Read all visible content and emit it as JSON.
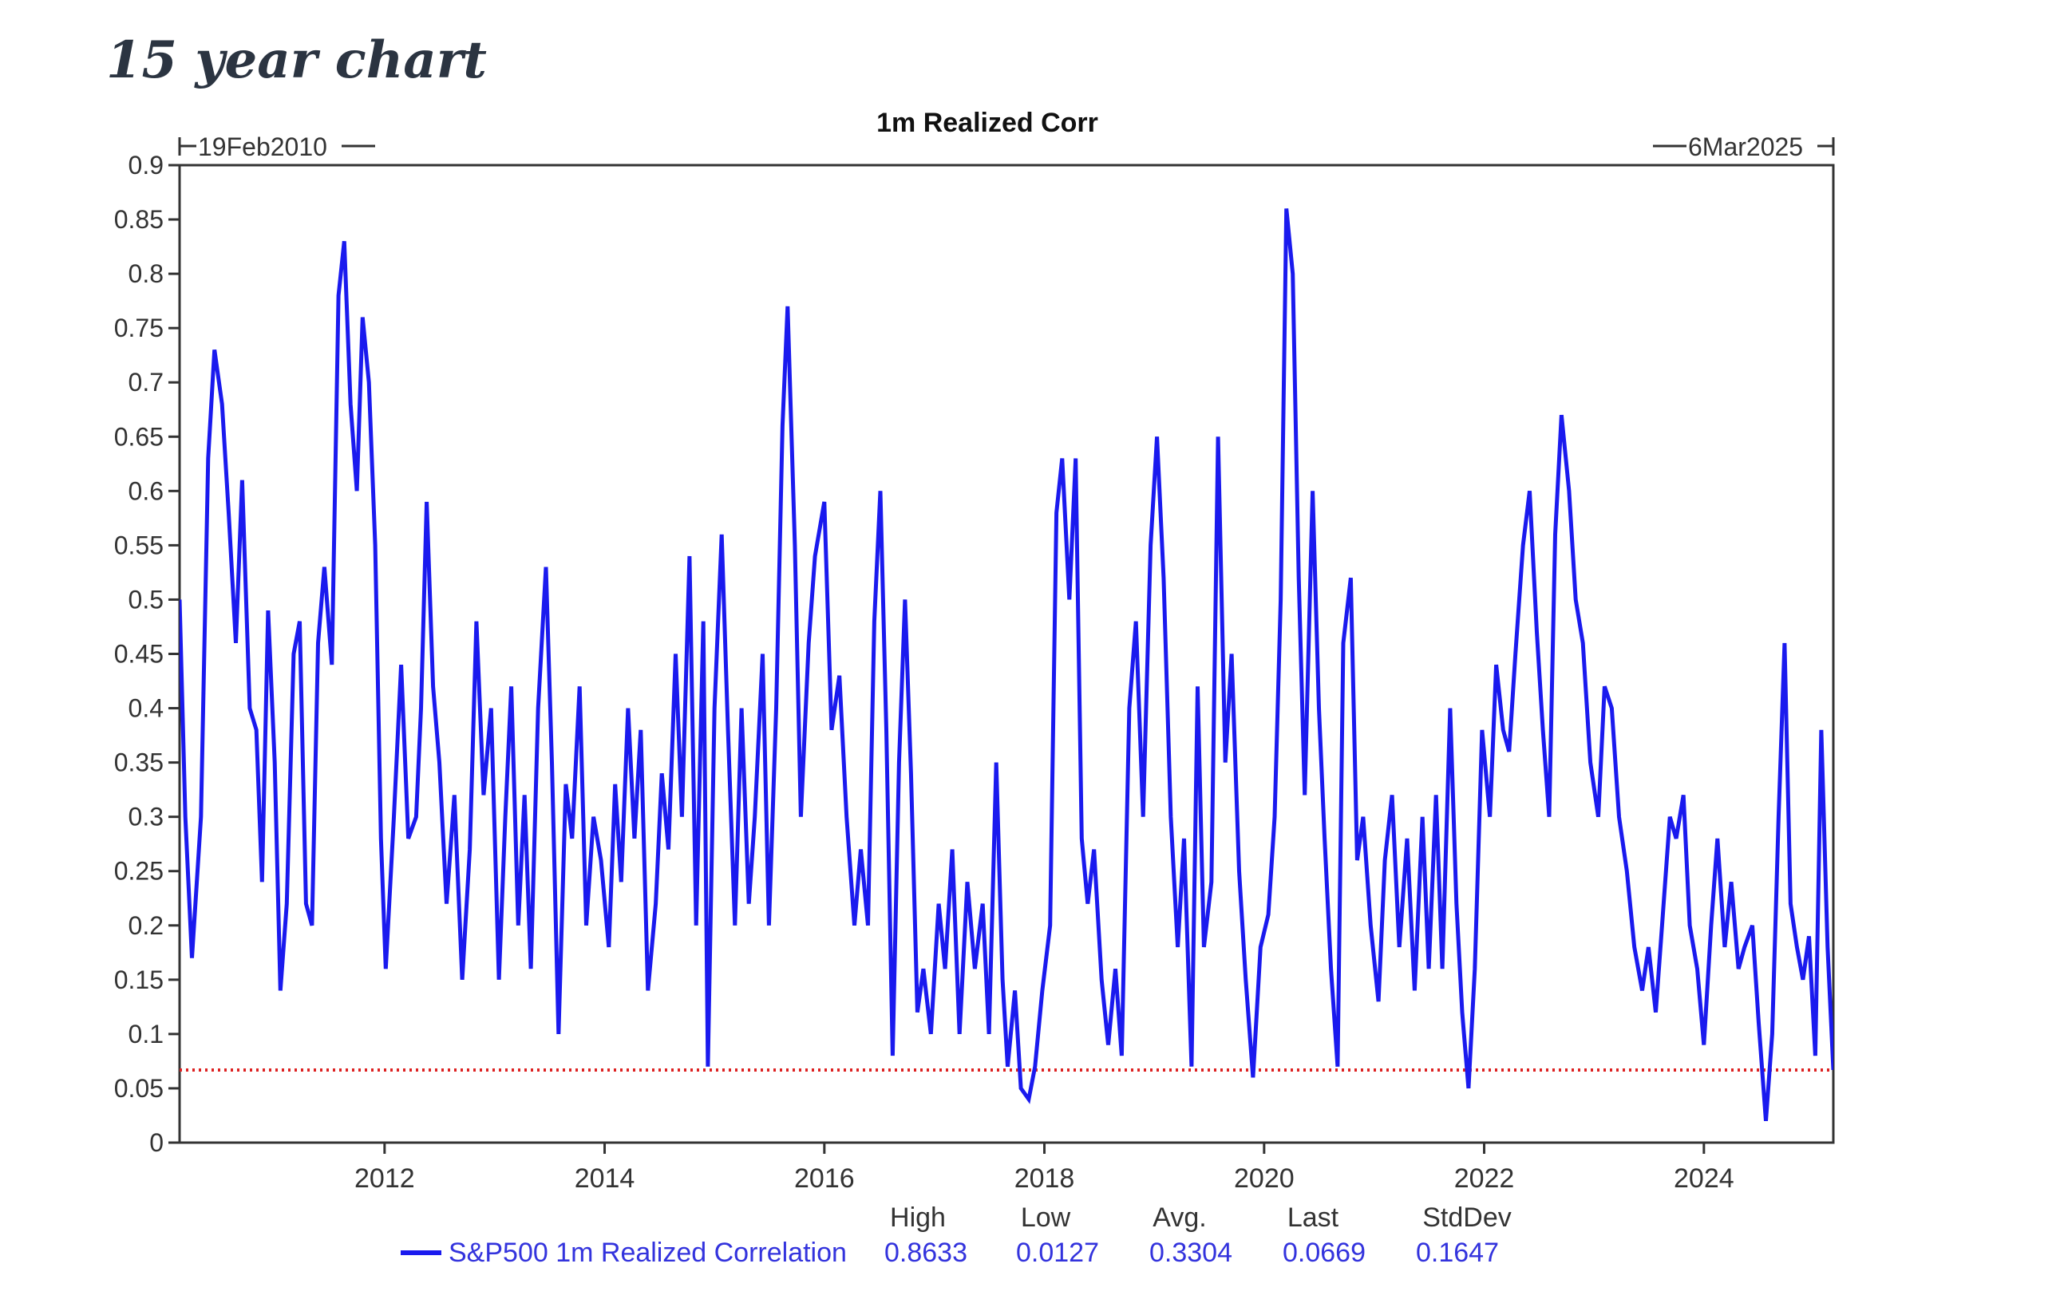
{
  "page": {
    "heading": "15 year chart"
  },
  "chart_data": {
    "type": "line",
    "title": "1m Realized Corr",
    "start_label": "19Feb2010",
    "end_label": "6Mar2025",
    "x_range": [
      "2010-02-19",
      "2025-03-06"
    ],
    "ylim": [
      0,
      0.9
    ],
    "y_ticks": [
      "0",
      "0.05",
      "0.1",
      "0.15",
      "0.2",
      "0.25",
      "0.3",
      "0.35",
      "0.4",
      "0.45",
      "0.5",
      "0.55",
      "0.6",
      "0.65",
      "0.7",
      "0.75",
      "0.8",
      "0.85",
      "0.9"
    ],
    "x_ticks": [
      "2012",
      "2014",
      "2016",
      "2018",
      "2020",
      "2022",
      "2024"
    ],
    "grid": false,
    "reference_line": {
      "value": 0.0669,
      "style": "dotted",
      "color": "#dd2222"
    },
    "series": [
      {
        "name": "S&P500 1m Realized Correlation",
        "color": "#1a1aee",
        "points": [
          [
            "2010-02-19",
            0.5
          ],
          [
            "2010-03-10",
            0.3
          ],
          [
            "2010-04-01",
            0.17
          ],
          [
            "2010-05-01",
            0.3
          ],
          [
            "2010-05-25",
            0.63
          ],
          [
            "2010-06-15",
            0.73
          ],
          [
            "2010-07-10",
            0.68
          ],
          [
            "2010-08-01",
            0.58
          ],
          [
            "2010-08-25",
            0.46
          ],
          [
            "2010-09-15",
            0.61
          ],
          [
            "2010-10-10",
            0.4
          ],
          [
            "2010-11-01",
            0.38
          ],
          [
            "2010-11-20",
            0.24
          ],
          [
            "2010-12-10",
            0.49
          ],
          [
            "2011-01-01",
            0.35
          ],
          [
            "2011-01-20",
            0.14
          ],
          [
            "2011-02-10",
            0.22
          ],
          [
            "2011-03-05",
            0.45
          ],
          [
            "2011-03-25",
            0.48
          ],
          [
            "2011-04-15",
            0.22
          ],
          [
            "2011-05-05",
            0.2
          ],
          [
            "2011-05-25",
            0.46
          ],
          [
            "2011-06-15",
            0.53
          ],
          [
            "2011-07-10",
            0.44
          ],
          [
            "2011-08-01",
            0.78
          ],
          [
            "2011-08-20",
            0.83
          ],
          [
            "2011-09-10",
            0.68
          ],
          [
            "2011-10-01",
            0.6
          ],
          [
            "2011-10-20",
            0.76
          ],
          [
            "2011-11-10",
            0.7
          ],
          [
            "2011-12-01",
            0.55
          ],
          [
            "2011-12-20",
            0.28
          ],
          [
            "2012-01-05",
            0.16
          ],
          [
            "2012-02-01",
            0.3
          ],
          [
            "2012-02-25",
            0.44
          ],
          [
            "2012-03-20",
            0.28
          ],
          [
            "2012-04-15",
            0.3
          ],
          [
            "2012-05-01",
            0.4
          ],
          [
            "2012-05-20",
            0.59
          ],
          [
            "2012-06-10",
            0.42
          ],
          [
            "2012-07-01",
            0.35
          ],
          [
            "2012-07-25",
            0.22
          ],
          [
            "2012-08-20",
            0.32
          ],
          [
            "2012-09-15",
            0.15
          ],
          [
            "2012-10-10",
            0.27
          ],
          [
            "2012-11-01",
            0.48
          ],
          [
            "2012-11-25",
            0.32
          ],
          [
            "2012-12-20",
            0.4
          ],
          [
            "2013-01-15",
            0.15
          ],
          [
            "2013-02-05",
            0.3
          ],
          [
            "2013-02-25",
            0.42
          ],
          [
            "2013-03-20",
            0.2
          ],
          [
            "2013-04-10",
            0.32
          ],
          [
            "2013-05-01",
            0.16
          ],
          [
            "2013-05-25",
            0.4
          ],
          [
            "2013-06-20",
            0.53
          ],
          [
            "2013-07-10",
            0.35
          ],
          [
            "2013-08-01",
            0.1
          ],
          [
            "2013-08-25",
            0.33
          ],
          [
            "2013-09-15",
            0.28
          ],
          [
            "2013-10-10",
            0.42
          ],
          [
            "2013-11-01",
            0.2
          ],
          [
            "2013-11-25",
            0.3
          ],
          [
            "2013-12-20",
            0.26
          ],
          [
            "2014-01-15",
            0.18
          ],
          [
            "2014-02-05",
            0.33
          ],
          [
            "2014-02-25",
            0.24
          ],
          [
            "2014-03-20",
            0.4
          ],
          [
            "2014-04-10",
            0.28
          ],
          [
            "2014-05-01",
            0.38
          ],
          [
            "2014-05-25",
            0.14
          ],
          [
            "2014-06-20",
            0.22
          ],
          [
            "2014-07-10",
            0.34
          ],
          [
            "2014-08-01",
            0.27
          ],
          [
            "2014-08-25",
            0.45
          ],
          [
            "2014-09-15",
            0.3
          ],
          [
            "2014-10-10",
            0.54
          ],
          [
            "2014-11-01",
            0.2
          ],
          [
            "2014-11-25",
            0.48
          ],
          [
            "2014-12-10",
            0.07
          ],
          [
            "2015-01-01",
            0.4
          ],
          [
            "2015-01-25",
            0.56
          ],
          [
            "2015-02-15",
            0.38
          ],
          [
            "2015-03-10",
            0.2
          ],
          [
            "2015-04-01",
            0.4
          ],
          [
            "2015-04-25",
            0.22
          ],
          [
            "2015-05-15",
            0.3
          ],
          [
            "2015-06-10",
            0.45
          ],
          [
            "2015-07-01",
            0.2
          ],
          [
            "2015-07-25",
            0.4
          ],
          [
            "2015-08-15",
            0.66
          ],
          [
            "2015-09-01",
            0.77
          ],
          [
            "2015-09-25",
            0.55
          ],
          [
            "2015-10-15",
            0.3
          ],
          [
            "2015-11-10",
            0.46
          ],
          [
            "2015-12-01",
            0.54
          ],
          [
            "2016-01-01",
            0.59
          ],
          [
            "2016-01-25",
            0.38
          ],
          [
            "2016-02-20",
            0.43
          ],
          [
            "2016-03-15",
            0.3
          ],
          [
            "2016-04-10",
            0.2
          ],
          [
            "2016-05-01",
            0.27
          ],
          [
            "2016-05-25",
            0.2
          ],
          [
            "2016-06-15",
            0.48
          ],
          [
            "2016-07-05",
            0.6
          ],
          [
            "2016-07-25",
            0.38
          ],
          [
            "2016-08-15",
            0.08
          ],
          [
            "2016-09-05",
            0.35
          ],
          [
            "2016-09-25",
            0.5
          ],
          [
            "2016-10-15",
            0.34
          ],
          [
            "2016-11-05",
            0.12
          ],
          [
            "2016-11-25",
            0.16
          ],
          [
            "2016-12-20",
            0.1
          ],
          [
            "2017-01-15",
            0.22
          ],
          [
            "2017-02-05",
            0.16
          ],
          [
            "2017-03-01",
            0.27
          ],
          [
            "2017-03-25",
            0.1
          ],
          [
            "2017-04-20",
            0.24
          ],
          [
            "2017-05-15",
            0.16
          ],
          [
            "2017-06-10",
            0.22
          ],
          [
            "2017-07-01",
            0.1
          ],
          [
            "2017-07-25",
            0.35
          ],
          [
            "2017-08-15",
            0.15
          ],
          [
            "2017-09-01",
            0.07
          ],
          [
            "2017-09-25",
            0.14
          ],
          [
            "2017-10-15",
            0.05
          ],
          [
            "2017-11-10",
            0.04
          ],
          [
            "2017-12-01",
            0.07
          ],
          [
            "2017-12-25",
            0.14
          ],
          [
            "2018-01-20",
            0.2
          ],
          [
            "2018-02-10",
            0.58
          ],
          [
            "2018-03-01",
            0.63
          ],
          [
            "2018-03-25",
            0.5
          ],
          [
            "2018-04-15",
            0.63
          ],
          [
            "2018-05-05",
            0.28
          ],
          [
            "2018-05-25",
            0.22
          ],
          [
            "2018-06-15",
            0.27
          ],
          [
            "2018-07-10",
            0.15
          ],
          [
            "2018-08-01",
            0.09
          ],
          [
            "2018-08-25",
            0.16
          ],
          [
            "2018-09-15",
            0.08
          ],
          [
            "2018-10-10",
            0.4
          ],
          [
            "2018-11-01",
            0.48
          ],
          [
            "2018-11-25",
            0.3
          ],
          [
            "2018-12-20",
            0.55
          ],
          [
            "2019-01-10",
            0.65
          ],
          [
            "2019-02-01",
            0.52
          ],
          [
            "2019-02-25",
            0.3
          ],
          [
            "2019-03-20",
            0.18
          ],
          [
            "2019-04-10",
            0.28
          ],
          [
            "2019-05-05",
            0.07
          ],
          [
            "2019-05-25",
            0.42
          ],
          [
            "2019-06-15",
            0.18
          ],
          [
            "2019-07-10",
            0.24
          ],
          [
            "2019-08-01",
            0.65
          ],
          [
            "2019-08-25",
            0.35
          ],
          [
            "2019-09-15",
            0.45
          ],
          [
            "2019-10-10",
            0.25
          ],
          [
            "2019-11-01",
            0.15
          ],
          [
            "2019-11-25",
            0.06
          ],
          [
            "2019-12-20",
            0.18
          ],
          [
            "2020-01-15",
            0.21
          ],
          [
            "2020-02-05",
            0.3
          ],
          [
            "2020-02-25",
            0.5
          ],
          [
            "2020-03-15",
            0.86
          ],
          [
            "2020-04-05",
            0.8
          ],
          [
            "2020-04-25",
            0.52
          ],
          [
            "2020-05-15",
            0.32
          ],
          [
            "2020-06-10",
            0.6
          ],
          [
            "2020-07-01",
            0.4
          ],
          [
            "2020-07-20",
            0.28
          ],
          [
            "2020-08-10",
            0.16
          ],
          [
            "2020-09-01",
            0.07
          ],
          [
            "2020-09-20",
            0.46
          ],
          [
            "2020-10-15",
            0.52
          ],
          [
            "2020-11-05",
            0.26
          ],
          [
            "2020-11-25",
            0.3
          ],
          [
            "2020-12-20",
            0.2
          ],
          [
            "2021-01-15",
            0.13
          ],
          [
            "2021-02-05",
            0.26
          ],
          [
            "2021-03-01",
            0.32
          ],
          [
            "2021-03-25",
            0.18
          ],
          [
            "2021-04-20",
            0.28
          ],
          [
            "2021-05-15",
            0.14
          ],
          [
            "2021-06-10",
            0.3
          ],
          [
            "2021-07-01",
            0.16
          ],
          [
            "2021-07-25",
            0.32
          ],
          [
            "2021-08-15",
            0.16
          ],
          [
            "2021-09-10",
            0.4
          ],
          [
            "2021-10-01",
            0.22
          ],
          [
            "2021-10-20",
            0.12
          ],
          [
            "2021-11-10",
            0.05
          ],
          [
            "2021-12-01",
            0.16
          ],
          [
            "2021-12-25",
            0.38
          ],
          [
            "2022-01-20",
            0.3
          ],
          [
            "2022-02-10",
            0.44
          ],
          [
            "2022-03-05",
            0.38
          ],
          [
            "2022-03-25",
            0.36
          ],
          [
            "2022-04-15",
            0.45
          ],
          [
            "2022-05-10",
            0.55
          ],
          [
            "2022-06-01",
            0.6
          ],
          [
            "2022-06-25",
            0.47
          ],
          [
            "2022-07-15",
            0.38
          ],
          [
            "2022-08-05",
            0.3
          ],
          [
            "2022-08-25",
            0.56
          ],
          [
            "2022-09-15",
            0.67
          ],
          [
            "2022-10-10",
            0.6
          ],
          [
            "2022-11-01",
            0.5
          ],
          [
            "2022-11-25",
            0.46
          ],
          [
            "2022-12-20",
            0.35
          ],
          [
            "2023-01-15",
            0.3
          ],
          [
            "2023-02-05",
            0.42
          ],
          [
            "2023-03-01",
            0.4
          ],
          [
            "2023-03-25",
            0.3
          ],
          [
            "2023-04-20",
            0.25
          ],
          [
            "2023-05-15",
            0.18
          ],
          [
            "2023-06-10",
            0.14
          ],
          [
            "2023-07-01",
            0.18
          ],
          [
            "2023-07-25",
            0.12
          ],
          [
            "2023-08-15",
            0.2
          ],
          [
            "2023-09-10",
            0.3
          ],
          [
            "2023-10-01",
            0.28
          ],
          [
            "2023-10-25",
            0.32
          ],
          [
            "2023-11-15",
            0.2
          ],
          [
            "2023-12-10",
            0.16
          ],
          [
            "2024-01-01",
            0.09
          ],
          [
            "2024-01-25",
            0.2
          ],
          [
            "2024-02-15",
            0.28
          ],
          [
            "2024-03-10",
            0.18
          ],
          [
            "2024-04-01",
            0.24
          ],
          [
            "2024-04-25",
            0.16
          ],
          [
            "2024-05-15",
            0.18
          ],
          [
            "2024-06-10",
            0.2
          ],
          [
            "2024-07-01",
            0.11
          ],
          [
            "2024-07-25",
            0.02
          ],
          [
            "2024-08-15",
            0.1
          ],
          [
            "2024-09-05",
            0.3
          ],
          [
            "2024-09-25",
            0.46
          ],
          [
            "2024-10-15",
            0.22
          ],
          [
            "2024-11-05",
            0.18
          ],
          [
            "2024-11-25",
            0.15
          ],
          [
            "2024-12-15",
            0.19
          ],
          [
            "2025-01-05",
            0.08
          ],
          [
            "2025-01-25",
            0.38
          ],
          [
            "2025-02-15",
            0.18
          ],
          [
            "2025-03-06",
            0.0669
          ]
        ]
      }
    ],
    "stats": {
      "headers": [
        "High",
        "Low",
        "Avg.",
        "Last",
        "StdDev"
      ],
      "values": [
        "0.8633",
        "0.0127",
        "0.3304",
        "0.0669",
        "0.1647"
      ]
    }
  }
}
